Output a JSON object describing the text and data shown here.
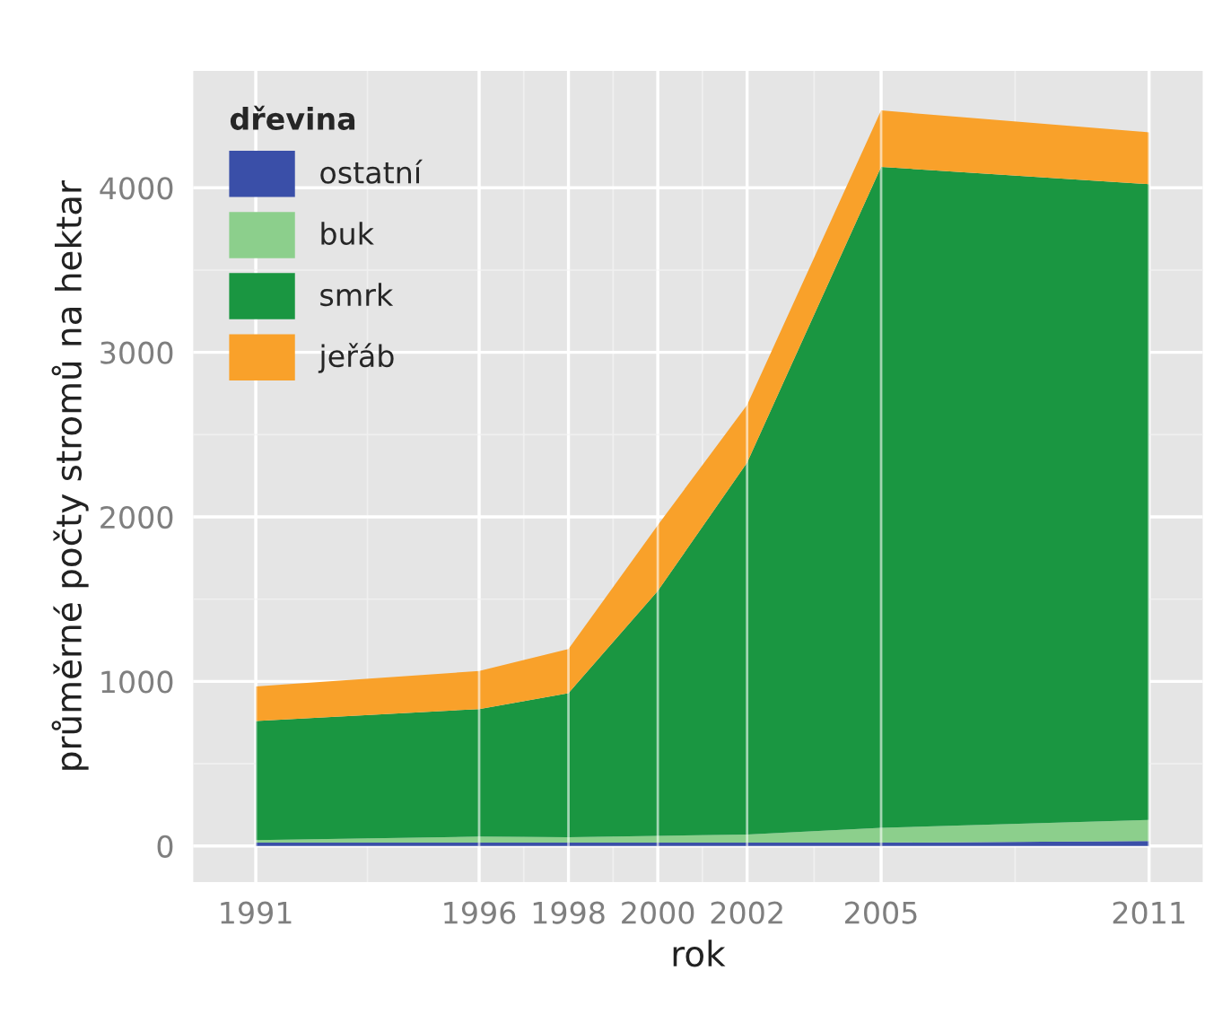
{
  "chart_data": {
    "type": "area",
    "stacked": true,
    "xlabel": "rok",
    "ylabel": "průměrné počty stromů na hektar",
    "legend_title": "dřevina",
    "legend": "top left",
    "grid": true,
    "x": [
      1991,
      1996,
      1998,
      2000,
      2002,
      2005,
      2011
    ],
    "series": [
      {
        "name": "ostatní",
        "color": "#3a4fa8",
        "values": [
          20,
          20,
          20,
          20,
          20,
          20,
          30
        ]
      },
      {
        "name": "buk",
        "color": "#8ccf8c",
        "values": [
          15,
          37,
          33,
          41,
          50,
          90,
          128
        ]
      },
      {
        "name": "smrk",
        "color": "#1a9641",
        "values": [
          724,
          775,
          876,
          1489,
          2260,
          4017,
          3864
        ]
      },
      {
        "name": "jeřáb",
        "color": "#f9a12a",
        "values": [
          211,
          231,
          268,
          400,
          350,
          343,
          315
        ]
      }
    ],
    "xlim": [
      1989.6,
      2012.2
    ],
    "xticks": [
      1991,
      1996,
      1998,
      2000,
      2002,
      2005,
      2011
    ],
    "ylim": [
      -220,
      4710
    ],
    "yticks": [
      0,
      1000,
      2000,
      3000,
      4000
    ]
  }
}
